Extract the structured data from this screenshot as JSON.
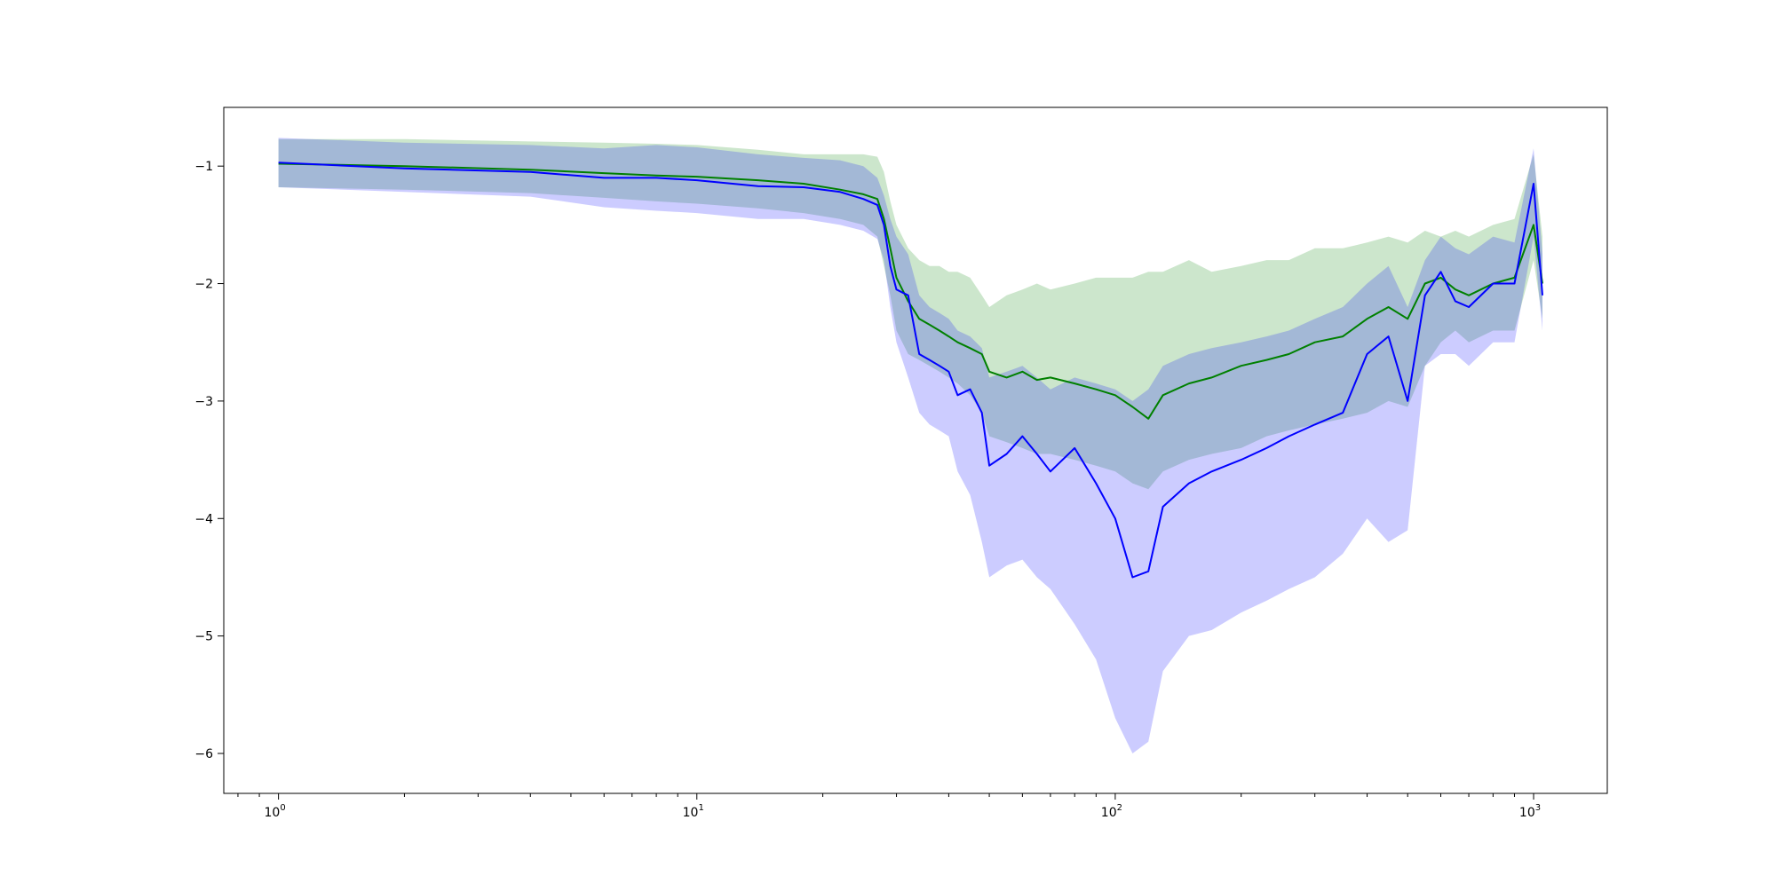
{
  "chart_data": {
    "type": "line",
    "title": "",
    "xlabel": "",
    "ylabel": "",
    "xscale": "log",
    "xlim": [
      0.74,
      1500
    ],
    "ylim": [
      -6.34,
      -0.5
    ],
    "grid": false,
    "legend": "none",
    "x_ticks": [
      {
        "value": 1,
        "base": "10",
        "exp": "0"
      },
      {
        "value": 10,
        "base": "10",
        "exp": "1"
      },
      {
        "value": 100,
        "base": "10",
        "exp": "2"
      },
      {
        "value": 1000,
        "base": "10",
        "exp": "3"
      }
    ],
    "y_ticks": [
      {
        "value": -1,
        "label": "−1"
      },
      {
        "value": -2,
        "label": "−2"
      },
      {
        "value": -3,
        "label": "−3"
      },
      {
        "value": -4,
        "label": "−4"
      },
      {
        "value": -5,
        "label": "−5"
      },
      {
        "value": -6,
        "label": "−6"
      }
    ],
    "series": [
      {
        "color": "#008000",
        "band_color": "#008000",
        "band_opacity": 0.2,
        "x": [
          1,
          2,
          4,
          6,
          8,
          10,
          14,
          18,
          22,
          25,
          27,
          28,
          29,
          30,
          32,
          34,
          36,
          38,
          40,
          42,
          45,
          48,
          50,
          55,
          60,
          65,
          70,
          80,
          90,
          100,
          110,
          120,
          130,
          150,
          170,
          200,
          230,
          260,
          300,
          350,
          400,
          450,
          500,
          550,
          600,
          650,
          700,
          800,
          900,
          1000,
          1050
        ],
        "y": [
          -0.98,
          -1.0,
          -1.03,
          -1.06,
          -1.08,
          -1.09,
          -1.12,
          -1.15,
          -1.2,
          -1.24,
          -1.28,
          -1.45,
          -1.7,
          -1.95,
          -2.15,
          -2.3,
          -2.35,
          -2.4,
          -2.45,
          -2.5,
          -2.55,
          -2.6,
          -2.75,
          -2.8,
          -2.75,
          -2.82,
          -2.8,
          -2.85,
          -2.9,
          -2.95,
          -3.05,
          -3.15,
          -2.95,
          -2.85,
          -2.8,
          -2.7,
          -2.65,
          -2.6,
          -2.5,
          -2.45,
          -2.3,
          -2.2,
          -2.3,
          -2.0,
          -1.95,
          -2.05,
          -2.1,
          -2.0,
          -1.95,
          -1.5,
          -2.0
        ],
        "upper": [
          -0.77,
          -0.77,
          -0.79,
          -0.8,
          -0.81,
          -0.82,
          -0.86,
          -0.9,
          -0.9,
          -0.9,
          -0.92,
          -1.05,
          -1.3,
          -1.5,
          -1.7,
          -1.8,
          -1.85,
          -1.85,
          -1.9,
          -1.9,
          -1.95,
          -2.1,
          -2.2,
          -2.1,
          -2.05,
          -2.0,
          -2.05,
          -2.0,
          -1.95,
          -1.95,
          -1.95,
          -1.9,
          -1.9,
          -1.8,
          -1.9,
          -1.85,
          -1.8,
          -1.8,
          -1.7,
          -1.7,
          -1.65,
          -1.6,
          -1.65,
          -1.55,
          -1.6,
          -1.55,
          -1.6,
          -1.5,
          -1.45,
          -0.9,
          -1.6
        ],
        "lower": [
          -1.18,
          -1.2,
          -1.23,
          -1.27,
          -1.3,
          -1.32,
          -1.36,
          -1.4,
          -1.45,
          -1.5,
          -1.6,
          -1.85,
          -2.1,
          -2.4,
          -2.6,
          -2.65,
          -2.7,
          -2.75,
          -2.8,
          -2.85,
          -2.95,
          -3.1,
          -3.3,
          -3.35,
          -3.4,
          -3.45,
          -3.45,
          -3.5,
          -3.55,
          -3.6,
          -3.7,
          -3.75,
          -3.6,
          -3.5,
          -3.45,
          -3.4,
          -3.3,
          -3.25,
          -3.2,
          -3.15,
          -3.1,
          -3.0,
          -3.05,
          -2.7,
          -2.5,
          -2.4,
          -2.5,
          -2.4,
          -2.4,
          -1.8,
          -2.3
        ]
      },
      {
        "color": "#0000ff",
        "band_color": "#0000ff",
        "band_opacity": 0.2,
        "x": [
          1,
          2,
          4,
          6,
          8,
          10,
          14,
          18,
          22,
          25,
          27,
          28,
          29,
          30,
          32,
          34,
          36,
          38,
          40,
          42,
          45,
          48,
          50,
          55,
          60,
          65,
          70,
          80,
          90,
          100,
          110,
          120,
          130,
          150,
          170,
          200,
          230,
          260,
          300,
          350,
          400,
          450,
          500,
          550,
          600,
          650,
          700,
          800,
          900,
          1000,
          1050
        ],
        "y": [
          -0.97,
          -1.02,
          -1.05,
          -1.1,
          -1.1,
          -1.12,
          -1.17,
          -1.18,
          -1.22,
          -1.28,
          -1.33,
          -1.5,
          -1.85,
          -2.05,
          -2.1,
          -2.6,
          -2.65,
          -2.7,
          -2.75,
          -2.95,
          -2.9,
          -3.1,
          -3.55,
          -3.45,
          -3.3,
          -3.45,
          -3.6,
          -3.4,
          -3.7,
          -4.0,
          -4.5,
          -4.45,
          -3.9,
          -3.7,
          -3.6,
          -3.5,
          -3.4,
          -3.3,
          -3.2,
          -3.1,
          -2.6,
          -2.45,
          -3.0,
          -2.1,
          -1.9,
          -2.15,
          -2.2,
          -2.0,
          -2.0,
          -1.15,
          -2.1
        ],
        "upper": [
          -0.76,
          -0.8,
          -0.82,
          -0.85,
          -0.82,
          -0.84,
          -0.9,
          -0.93,
          -0.95,
          -1.0,
          -1.1,
          -1.25,
          -1.45,
          -1.6,
          -1.75,
          -2.1,
          -2.2,
          -2.25,
          -2.3,
          -2.4,
          -2.45,
          -2.55,
          -2.8,
          -2.75,
          -2.7,
          -2.8,
          -2.9,
          -2.8,
          -2.85,
          -2.9,
          -3.0,
          -2.9,
          -2.7,
          -2.6,
          -2.55,
          -2.5,
          -2.45,
          -2.4,
          -2.3,
          -2.2,
          -2.0,
          -1.85,
          -2.2,
          -1.8,
          -1.6,
          -1.7,
          -1.75,
          -1.6,
          -1.65,
          -0.85,
          -1.75
        ],
        "lower": [
          -1.18,
          -1.22,
          -1.26,
          -1.35,
          -1.38,
          -1.4,
          -1.45,
          -1.45,
          -1.5,
          -1.55,
          -1.62,
          -1.8,
          -2.2,
          -2.5,
          -2.8,
          -3.1,
          -3.2,
          -3.25,
          -3.3,
          -3.6,
          -3.8,
          -4.2,
          -4.5,
          -4.4,
          -4.35,
          -4.5,
          -4.6,
          -4.9,
          -5.2,
          -5.7,
          -6.0,
          -5.9,
          -5.3,
          -5.0,
          -4.95,
          -4.8,
          -4.7,
          -4.6,
          -4.5,
          -4.3,
          -4.0,
          -4.2,
          -4.1,
          -2.7,
          -2.6,
          -2.6,
          -2.7,
          -2.5,
          -2.5,
          -1.6,
          -2.4
        ]
      }
    ]
  }
}
